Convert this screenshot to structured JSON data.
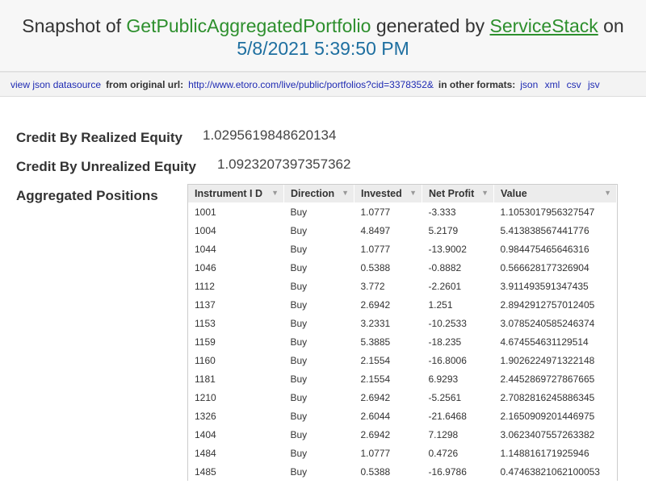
{
  "header": {
    "prefix": "Snapshot of",
    "service_name": "GetPublicAggregatedPortfolio",
    "middle": "generated by",
    "generator": "ServiceStack",
    "suffix": "on",
    "timestamp": "5/8/2021 5:39:50 PM"
  },
  "toolbar": {
    "view_json": "view json datasource",
    "from_label": "from original url:",
    "url": "http://www.etoro.com/live/public/portfolios?cid=3378352&",
    "other_label": "in other formats:",
    "formats": [
      "json",
      "xml",
      "csv",
      "jsv"
    ]
  },
  "fields": {
    "realized_label": "Credit By Realized Equity",
    "realized_value": "1.0295619848620134",
    "unrealized_label": "Credit By Unrealized Equity",
    "unrealized_value": "1.0923207397357362",
    "positions_label": "Aggregated Positions"
  },
  "table": {
    "columns": [
      "Instrument I D",
      "Direction",
      "Invested",
      "Net Profit",
      "Value"
    ],
    "rows": [
      [
        "1001",
        "Buy",
        "1.0777",
        "-3.333",
        "1.1053017956327547"
      ],
      [
        "1004",
        "Buy",
        "4.8497",
        "5.2179",
        "5.413838567441776"
      ],
      [
        "1044",
        "Buy",
        "1.0777",
        "-13.9002",
        "0.984475465646316"
      ],
      [
        "1046",
        "Buy",
        "0.5388",
        "-0.8882",
        "0.566628177326904"
      ],
      [
        "1112",
        "Buy",
        "3.772",
        "-2.2601",
        "3.911493591347435"
      ],
      [
        "1137",
        "Buy",
        "2.6942",
        "1.251",
        "2.8942912757012405"
      ],
      [
        "1153",
        "Buy",
        "3.2331",
        "-10.2533",
        "3.0785240585246374"
      ],
      [
        "1159",
        "Buy",
        "5.3885",
        "-18.235",
        "4.674554631129514"
      ],
      [
        "1160",
        "Buy",
        "2.1554",
        "-16.8006",
        "1.9026224971322148"
      ],
      [
        "1181",
        "Buy",
        "2.1554",
        "6.9293",
        "2.4452869727867665"
      ],
      [
        "1210",
        "Buy",
        "2.6942",
        "-5.2561",
        "2.7082816245886345"
      ],
      [
        "1326",
        "Buy",
        "2.6044",
        "-21.6468",
        "2.1650909201446975"
      ],
      [
        "1404",
        "Buy",
        "2.6942",
        "7.1298",
        "3.0623407557263382"
      ],
      [
        "1484",
        "Buy",
        "1.0777",
        "0.4726",
        "1.148816171925946"
      ],
      [
        "1485",
        "Buy",
        "0.5388",
        "-16.9786",
        "0.47463821062100053"
      ]
    ]
  }
}
